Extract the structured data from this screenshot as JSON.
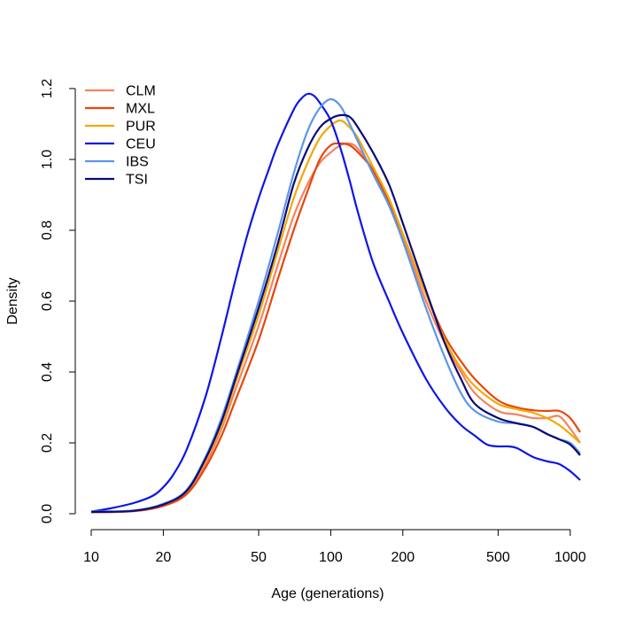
{
  "chart_data": {
    "type": "line",
    "title": "",
    "xlabel": "Age (generations)",
    "ylabel": "Density",
    "xscale": "log",
    "xlim": [
      10,
      1100
    ],
    "ylim": [
      0,
      1.2
    ],
    "xticks": [
      10,
      20,
      50,
      100,
      200,
      500,
      1000
    ],
    "xtick_labels": [
      "10",
      "20",
      "50",
      "100",
      "200",
      "500",
      "1000"
    ],
    "yticks": [
      0,
      0.2,
      0.4,
      0.6,
      0.8,
      1.0,
      1.2
    ],
    "ytick_labels": [
      "0.0",
      "0.2",
      "0.4",
      "0.6",
      "0.8",
      "1.0",
      "1.2"
    ],
    "grid": false,
    "legend_position": "top-left",
    "series": [
      {
        "name": "CLM",
        "color": "#F4845F",
        "x": [
          10,
          15,
          20,
          25,
          30,
          35,
          40,
          50,
          60,
          70,
          80,
          90,
          100,
          110,
          120,
          130,
          150,
          175,
          200,
          250,
          300,
          350,
          400,
          500,
          600,
          700,
          800,
          900,
          1000,
          1100
        ],
        "y": [
          0.005,
          0.008,
          0.025,
          0.06,
          0.14,
          0.24,
          0.35,
          0.53,
          0.7,
          0.84,
          0.93,
          0.99,
          1.02,
          1.04,
          1.045,
          1.03,
          0.97,
          0.88,
          0.78,
          0.6,
          0.48,
          0.4,
          0.34,
          0.29,
          0.28,
          0.27,
          0.27,
          0.275,
          0.24,
          0.2
        ]
      },
      {
        "name": "MXL",
        "color": "#E8450A",
        "x": [
          10,
          15,
          20,
          25,
          30,
          35,
          40,
          50,
          60,
          70,
          80,
          90,
          100,
          110,
          120,
          130,
          150,
          175,
          200,
          250,
          300,
          350,
          400,
          500,
          600,
          700,
          800,
          900,
          1000,
          1100
        ],
        "y": [
          0.004,
          0.007,
          0.022,
          0.055,
          0.13,
          0.22,
          0.32,
          0.49,
          0.66,
          0.8,
          0.91,
          1.0,
          1.04,
          1.045,
          1.04,
          1.02,
          0.97,
          0.88,
          0.79,
          0.62,
          0.5,
          0.43,
          0.38,
          0.32,
          0.3,
          0.292,
          0.29,
          0.29,
          0.27,
          0.23
        ]
      },
      {
        "name": "PUR",
        "color": "#F5A800",
        "x": [
          10,
          15,
          20,
          25,
          30,
          35,
          40,
          50,
          60,
          70,
          80,
          90,
          100,
          110,
          120,
          130,
          150,
          175,
          200,
          250,
          300,
          350,
          400,
          500,
          600,
          700,
          800,
          900,
          1000,
          1100
        ],
        "y": [
          0.005,
          0.008,
          0.026,
          0.063,
          0.15,
          0.25,
          0.37,
          0.56,
          0.74,
          0.89,
          0.99,
          1.06,
          1.095,
          1.11,
          1.09,
          1.06,
          0.98,
          0.89,
          0.79,
          0.62,
          0.49,
          0.41,
          0.36,
          0.31,
          0.295,
          0.285,
          0.27,
          0.25,
          0.225,
          0.2
        ]
      },
      {
        "name": "CEU",
        "color": "#0B16E6",
        "x": [
          10,
          12,
          15,
          18,
          20,
          22,
          25,
          30,
          35,
          40,
          45,
          50,
          55,
          60,
          70,
          75,
          80,
          85,
          90,
          100,
          110,
          120,
          130,
          150,
          175,
          200,
          250,
          300,
          350,
          400,
          450,
          500,
          550,
          600,
          700,
          800,
          900,
          1000,
          1100
        ],
        "y": [
          0.006,
          0.015,
          0.03,
          0.05,
          0.075,
          0.11,
          0.18,
          0.33,
          0.5,
          0.66,
          0.79,
          0.89,
          0.97,
          1.04,
          1.14,
          1.17,
          1.185,
          1.18,
          1.16,
          1.11,
          1.03,
          0.94,
          0.85,
          0.71,
          0.6,
          0.51,
          0.38,
          0.3,
          0.25,
          0.22,
          0.195,
          0.19,
          0.19,
          0.185,
          0.16,
          0.148,
          0.14,
          0.12,
          0.095
        ]
      },
      {
        "name": "IBS",
        "color": "#5C95E8",
        "x": [
          10,
          15,
          20,
          25,
          30,
          35,
          40,
          50,
          60,
          70,
          80,
          90,
          100,
          110,
          120,
          130,
          150,
          175,
          200,
          250,
          300,
          350,
          400,
          500,
          600,
          700,
          800,
          900,
          1000,
          1100
        ],
        "y": [
          0.006,
          0.009,
          0.028,
          0.067,
          0.16,
          0.27,
          0.39,
          0.6,
          0.79,
          0.96,
          1.08,
          1.145,
          1.17,
          1.15,
          1.1,
          1.05,
          0.96,
          0.87,
          0.77,
          0.58,
          0.44,
          0.34,
          0.29,
          0.26,
          0.255,
          0.245,
          0.225,
          0.21,
          0.2,
          0.17
        ]
      },
      {
        "name": "TSI",
        "color": "#0A0A7A",
        "x": [
          10,
          15,
          20,
          25,
          30,
          35,
          40,
          50,
          60,
          70,
          80,
          90,
          100,
          110,
          120,
          130,
          150,
          175,
          200,
          250,
          300,
          350,
          400,
          500,
          600,
          700,
          800,
          900,
          1000,
          1100
        ],
        "y": [
          0.005,
          0.008,
          0.026,
          0.064,
          0.155,
          0.26,
          0.38,
          0.58,
          0.76,
          0.93,
          1.03,
          1.09,
          1.115,
          1.125,
          1.12,
          1.09,
          1.02,
          0.93,
          0.82,
          0.63,
          0.48,
          0.38,
          0.31,
          0.27,
          0.255,
          0.245,
          0.225,
          0.21,
          0.195,
          0.165
        ]
      }
    ]
  }
}
